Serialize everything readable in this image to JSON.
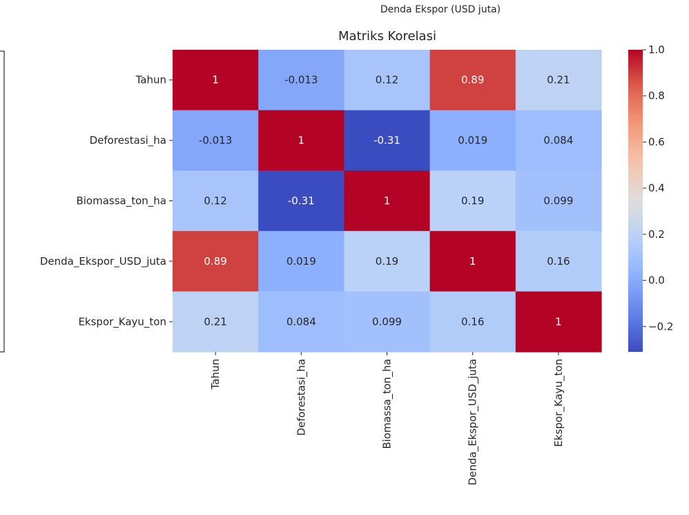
{
  "figure": {
    "top_label": "Denda Ekspor (USD juta)"
  },
  "chart_data": {
    "type": "heatmap",
    "title": "Matriks Korelasi",
    "colormap": "coolwarm",
    "row_labels": [
      "Tahun",
      "Deforestasi_ha",
      "Biomassa_ton_ha",
      "Denda_Ekspor_USD_juta",
      "Ekspor_Kayu_ton"
    ],
    "col_labels": [
      "Tahun",
      "Deforestasi_ha",
      "Biomassa_ton_ha",
      "Denda_Ekspor_USD_juta",
      "Ekspor_Kayu_ton"
    ],
    "values": [
      [
        1,
        -0.013,
        0.12,
        0.89,
        0.21
      ],
      [
        -0.013,
        1,
        -0.31,
        0.019,
        0.084
      ],
      [
        0.12,
        -0.31,
        1,
        0.19,
        0.099
      ],
      [
        0.89,
        0.019,
        0.19,
        1,
        0.16
      ],
      [
        0.21,
        0.084,
        0.099,
        0.16,
        1
      ]
    ],
    "annotations": [
      [
        "1",
        "-0.013",
        "0.12",
        "0.89",
        "0.21"
      ],
      [
        "-0.013",
        "1",
        "-0.31",
        "0.019",
        "0.084"
      ],
      [
        "0.12",
        "-0.31",
        "1",
        "0.19",
        "0.099"
      ],
      [
        "0.89",
        "0.019",
        "0.19",
        "1",
        "0.16"
      ],
      [
        "0.21",
        "0.084",
        "0.099",
        "0.16",
        "1"
      ]
    ],
    "colorbar": {
      "vmin": -0.31,
      "vmax": 1.0,
      "ticks": [
        1.0,
        0.8,
        0.6,
        0.4,
        0.2,
        0.0,
        -0.2
      ],
      "tick_labels": [
        "1.0",
        "0.8",
        "0.6",
        "0.4",
        "0.2",
        "0.0",
        "−0.2"
      ]
    }
  }
}
